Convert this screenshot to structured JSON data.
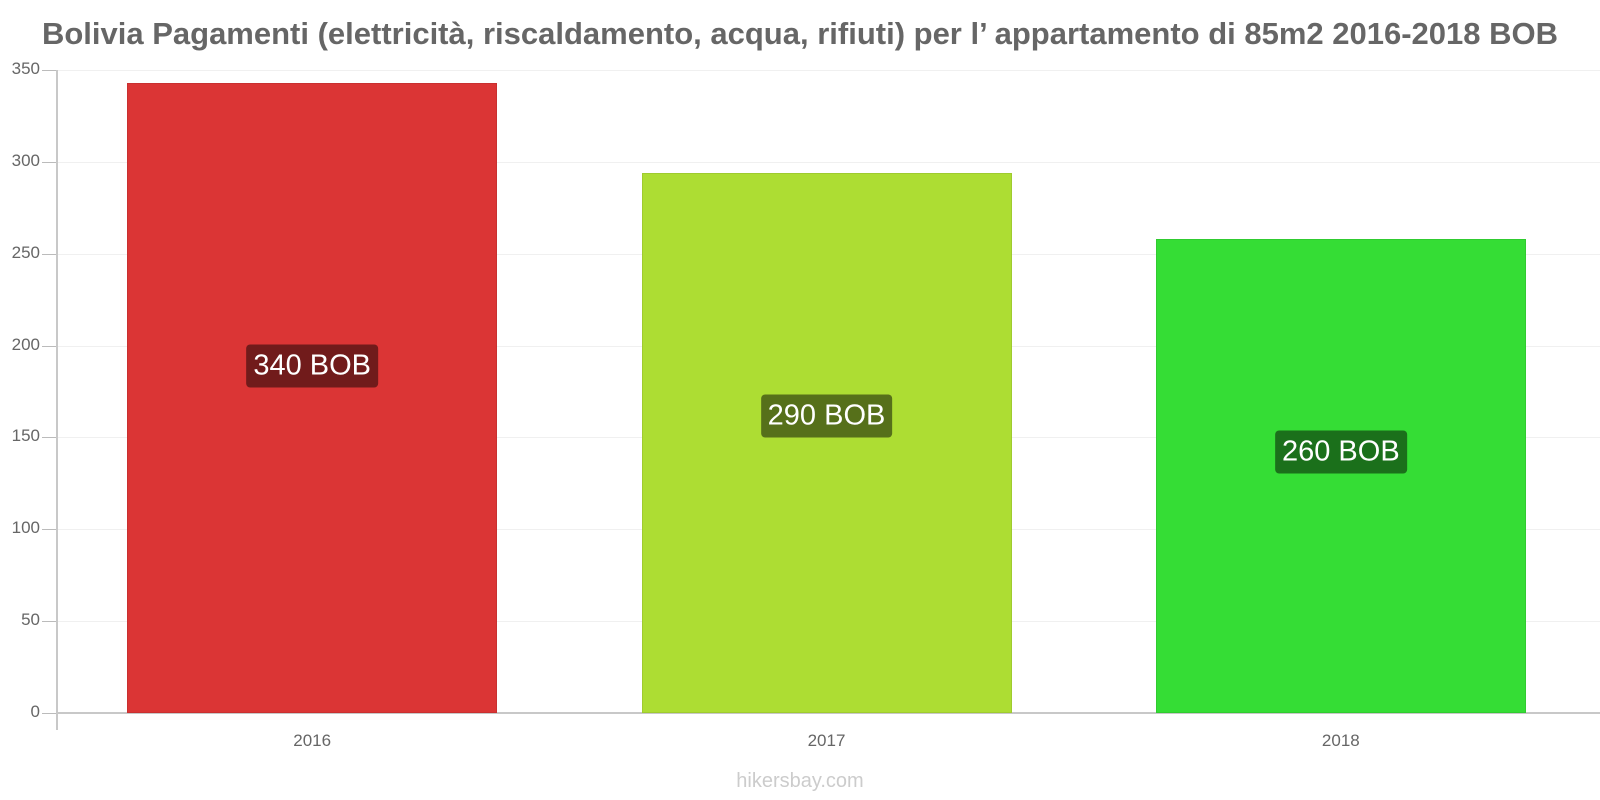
{
  "chart_data": {
    "type": "bar",
    "title": "Bolivia Pagamenti (elettricità, riscaldamento, acqua, rifiuti) per l’ appartamento di 85m2 2016-2018 BOB",
    "categories": [
      "2016",
      "2017",
      "2018"
    ],
    "values": [
      343,
      294,
      258
    ],
    "data_labels": [
      "340 BOB",
      "290 BOB",
      "260 BOB"
    ],
    "bar_colors": [
      "#db3535",
      "#addd33",
      "#35dd35"
    ],
    "label_bg_colors": [
      "#711b1b",
      "#56701a",
      "#1b701b"
    ],
    "xlabel": "",
    "ylabel": "",
    "ylim": [
      0,
      350
    ],
    "yticks": [
      0,
      50,
      100,
      150,
      200,
      250,
      300,
      350
    ],
    "grid": true,
    "legend": null
  },
  "watermark": "hikersbay.com"
}
